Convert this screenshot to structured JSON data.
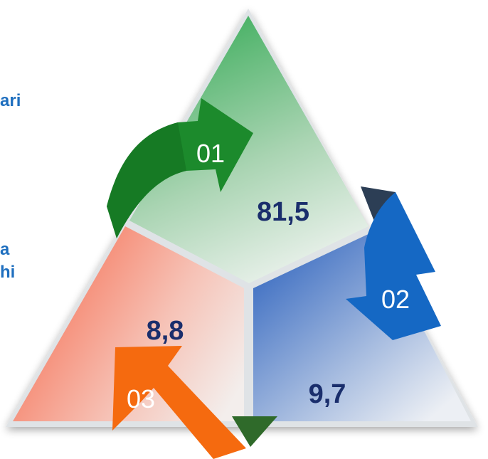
{
  "side_labels": {
    "line1": "ari",
    "line2": "a",
    "line3": "hi"
  },
  "segments": [
    {
      "number": "01",
      "value": "81,5",
      "color": "#4caf68",
      "arrow_color": "#1a8a2a"
    },
    {
      "number": "02",
      "value": "9,7",
      "color": "#3a6fc4",
      "arrow_color": "#1565c0"
    },
    {
      "number": "03",
      "value": "8,8",
      "color": "#f4836a",
      "arrow_color": "#f06a10"
    }
  ],
  "colors": {
    "label_blue": "#1f6fbf",
    "value_navy": "#1a2e6c",
    "arrow_green": "#1a8a2a",
    "arrow_blue": "#1565c0",
    "arrow_orange": "#f06a10"
  }
}
